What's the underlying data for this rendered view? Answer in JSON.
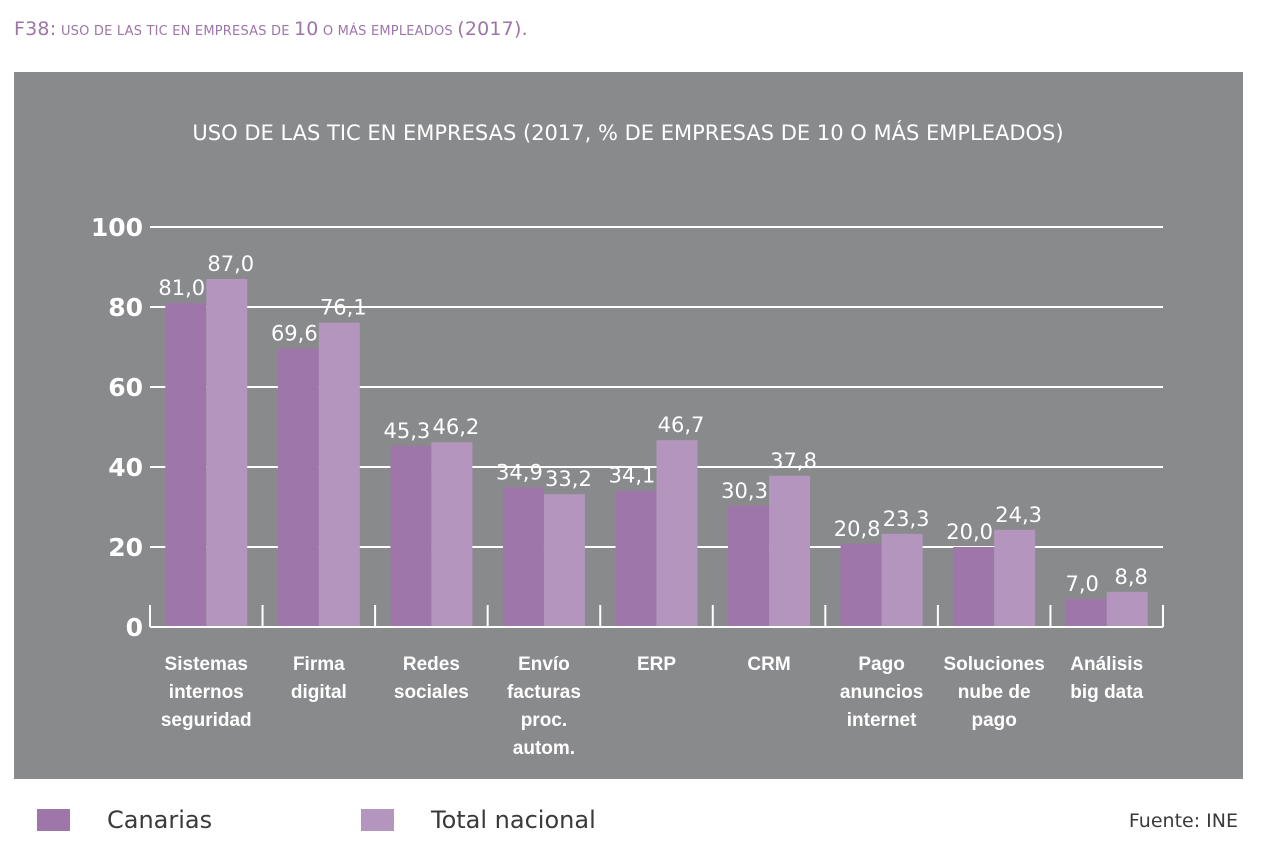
{
  "figure": {
    "label": "F38:",
    "caption_parts": [
      "uso de las tic en empresas de ",
      "10",
      " o más empleados ",
      "(2017)."
    ]
  },
  "colors": {
    "panel_bg": "#898a8c",
    "canarias": "#9e76a9",
    "total_nacional": "#b495bd",
    "figure_label": "#9d76a8"
  },
  "legend": {
    "items": [
      {
        "label": "Canarias",
        "color": "#9e76a9"
      },
      {
        "label": "Total nacional",
        "color": "#b495bd"
      }
    ]
  },
  "source": "Fuente: INE",
  "chart_data": {
    "type": "bar",
    "title": "USO DE LAS TIC EN EMPRESAS (2017, % DE EMPRESAS DE 10 O MÁS EMPLEADOS)",
    "xlabel": "",
    "ylabel": "",
    "ylim": [
      0,
      100
    ],
    "yticks": [
      0,
      20,
      40,
      60,
      80,
      100
    ],
    "grid": true,
    "legend_position": "bottom-left",
    "categories": [
      [
        "Sistemas",
        "internos",
        "seguridad"
      ],
      [
        "Firma",
        "digital"
      ],
      [
        "Redes",
        "sociales"
      ],
      [
        "Envío",
        "facturas",
        "proc.",
        "autom."
      ],
      [
        "ERP"
      ],
      [
        "CRM"
      ],
      [
        "Pago",
        "anuncios",
        "internet"
      ],
      [
        "Soluciones",
        "nube de",
        "pago"
      ],
      [
        "Análisis",
        "big data"
      ]
    ],
    "series": [
      {
        "name": "Canarias",
        "values": [
          81.0,
          69.6,
          45.3,
          34.9,
          34.1,
          30.3,
          20.8,
          20.0,
          7.0
        ],
        "labels": [
          "81,0",
          "69,6",
          "45,3",
          "34,9",
          "34,1",
          "30,3",
          "20,8",
          "20,0",
          "7,0"
        ]
      },
      {
        "name": "Total nacional",
        "values": [
          87.0,
          76.1,
          46.2,
          33.2,
          46.7,
          37.8,
          23.3,
          24.3,
          8.8
        ],
        "labels": [
          "87,0",
          "76,1",
          "46,2",
          "33,2",
          "46,7",
          "37,8",
          "23,3",
          "24,3",
          "8,8"
        ]
      }
    ]
  }
}
